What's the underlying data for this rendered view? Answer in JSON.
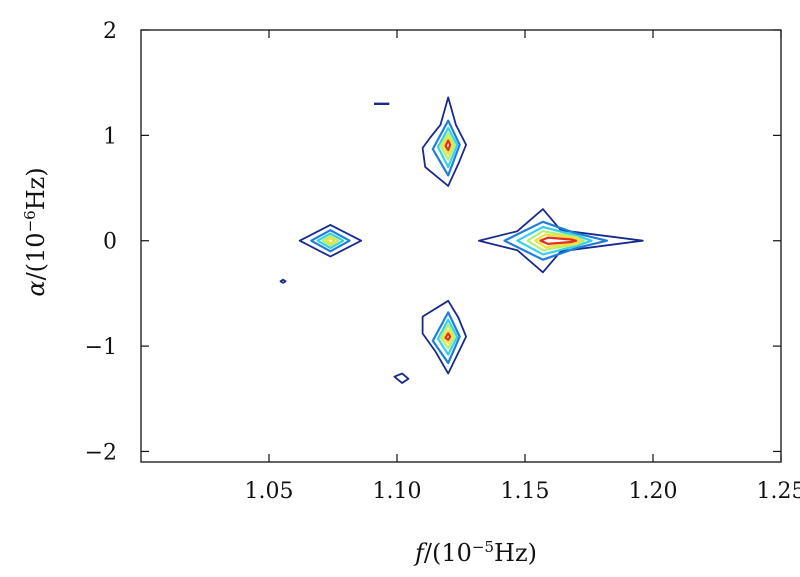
{
  "chart_data": {
    "type": "contour",
    "xlabel": {
      "var": "f",
      "unit_prefix": "/(10",
      "exp": "−5",
      "unit": "Hz)"
    },
    "ylabel": {
      "var": "α",
      "unit_prefix": "/(10",
      "exp": "−6",
      "unit": "Hz)"
    },
    "xlim": [
      1.0,
      1.25
    ],
    "ylim": [
      -2.1,
      2.0
    ],
    "xticks": [
      {
        "value": 1.05,
        "label": "1.05"
      },
      {
        "value": 1.1,
        "label": "1.10"
      },
      {
        "value": 1.15,
        "label": "1.15"
      },
      {
        "value": 1.2,
        "label": "1.20"
      },
      {
        "value": 1.25,
        "label": "1.25"
      }
    ],
    "yticks": [
      {
        "value": 2,
        "label": "2"
      },
      {
        "value": 1,
        "label": "1"
      },
      {
        "value": 0,
        "label": "0"
      },
      {
        "value": -1,
        "label": "−1"
      },
      {
        "value": -2,
        "label": "−2"
      }
    ],
    "level_colors": [
      "#1a2a8c",
      "#1e7fd8",
      "#38d0e8",
      "#b7f070",
      "#f0e040",
      "#e03020"
    ],
    "peaks": [
      {
        "f": 1.12,
        "alpha": 0.91,
        "contours": [
          {
            "level": 0,
            "points": [
              [
                1.12,
                1.36
              ],
              [
                1.123,
                1.1
              ],
              [
                1.127,
                0.91
              ],
              [
                1.124,
                0.73
              ],
              [
                1.12,
                0.52
              ],
              [
                1.115,
                0.62
              ],
              [
                1.111,
                0.7
              ],
              [
                1.11,
                0.88
              ],
              [
                1.113,
                0.98
              ],
              [
                1.117,
                1.1
              ]
            ]
          },
          {
            "level": 1,
            "points": [
              [
                1.12,
                1.14
              ],
              [
                1.1245,
                0.91
              ],
              [
                1.12,
                0.62
              ],
              [
                1.114,
                0.87
              ]
            ]
          },
          {
            "level": 2,
            "points": [
              [
                1.12,
                1.07
              ],
              [
                1.1235,
                0.91
              ],
              [
                1.12,
                0.7
              ],
              [
                1.116,
                0.89
              ]
            ]
          },
          {
            "level": 3,
            "points": [
              [
                1.12,
                1.02
              ],
              [
                1.1225,
                0.91
              ],
              [
                1.12,
                0.77
              ],
              [
                1.117,
                0.9
              ]
            ]
          },
          {
            "level": 4,
            "points": [
              [
                1.12,
                0.98
              ],
              [
                1.1215,
                0.91
              ],
              [
                1.12,
                0.82
              ],
              [
                1.118,
                0.9
              ]
            ]
          },
          {
            "level": 5,
            "points": [
              [
                1.12,
                0.95
              ],
              [
                1.1208,
                0.91
              ],
              [
                1.12,
                0.86
              ],
              [
                1.119,
                0.9
              ]
            ]
          }
        ]
      },
      {
        "f": 1.12,
        "alpha": -0.91,
        "contours": [
          {
            "level": 0,
            "points": [
              [
                1.12,
                -0.57
              ],
              [
                1.124,
                -0.73
              ],
              [
                1.127,
                -0.91
              ],
              [
                1.12,
                -1.26
              ],
              [
                1.115,
                -1.05
              ],
              [
                1.11,
                -0.88
              ],
              [
                1.11,
                -0.72
              ]
            ]
          },
          {
            "level": 1,
            "points": [
              [
                1.12,
                -0.68
              ],
              [
                1.1245,
                -0.91
              ],
              [
                1.12,
                -1.16
              ],
              [
                1.114,
                -0.95
              ]
            ]
          },
          {
            "level": 2,
            "points": [
              [
                1.12,
                -0.75
              ],
              [
                1.1235,
                -0.91
              ],
              [
                1.12,
                -1.08
              ],
              [
                1.116,
                -0.93
              ]
            ]
          },
          {
            "level": 3,
            "points": [
              [
                1.12,
                -0.8
              ],
              [
                1.1225,
                -0.91
              ],
              [
                1.12,
                -1.02
              ],
              [
                1.117,
                -0.92
              ]
            ]
          },
          {
            "level": 4,
            "points": [
              [
                1.12,
                -0.85
              ],
              [
                1.1215,
                -0.91
              ],
              [
                1.12,
                -0.97
              ],
              [
                1.118,
                -0.92
              ]
            ]
          },
          {
            "level": 5,
            "points": [
              [
                1.12,
                -0.88
              ],
              [
                1.1208,
                -0.91
              ],
              [
                1.12,
                -0.94
              ],
              [
                1.119,
                -0.92
              ]
            ]
          }
        ]
      },
      {
        "f": 1.074,
        "alpha": 0.0,
        "contours": [
          {
            "level": 0,
            "points": [
              [
                1.062,
                0.0
              ],
              [
                1.074,
                0.15
              ],
              [
                1.086,
                0.0
              ],
              [
                1.074,
                -0.15
              ]
            ]
          },
          {
            "level": 1,
            "points": [
              [
                1.0665,
                0.0
              ],
              [
                1.074,
                0.1
              ],
              [
                1.0815,
                0.0
              ],
              [
                1.074,
                -0.1
              ]
            ]
          },
          {
            "level": 2,
            "points": [
              [
                1.069,
                0.0
              ],
              [
                1.074,
                0.07
              ],
              [
                1.079,
                0.0
              ],
              [
                1.074,
                -0.07
              ]
            ]
          },
          {
            "level": 3,
            "points": [
              [
                1.071,
                0.0
              ],
              [
                1.074,
                0.045
              ],
              [
                1.077,
                0.0
              ],
              [
                1.074,
                -0.045
              ]
            ]
          },
          {
            "level": 4,
            "points": [
              [
                1.0725,
                0.0
              ],
              [
                1.074,
                0.025
              ],
              [
                1.0755,
                0.0
              ],
              [
                1.074,
                -0.025
              ]
            ]
          }
        ]
      },
      {
        "f": 1.16,
        "alpha": 0.0,
        "contours": [
          {
            "level": 0,
            "points": [
              [
                1.132,
                0.0
              ],
              [
                1.147,
                0.09
              ],
              [
                1.157,
                0.3
              ],
              [
                1.164,
                0.1
              ],
              [
                1.196,
                0.0
              ],
              [
                1.164,
                -0.1
              ],
              [
                1.157,
                -0.3
              ],
              [
                1.147,
                -0.09
              ]
            ]
          },
          {
            "level": 1,
            "points": [
              [
                1.142,
                0.0
              ],
              [
                1.157,
                0.18
              ],
              [
                1.17,
                0.07
              ],
              [
                1.182,
                0.0
              ],
              [
                1.17,
                -0.07
              ],
              [
                1.157,
                -0.18
              ]
            ]
          },
          {
            "level": 2,
            "points": [
              [
                1.147,
                0.0
              ],
              [
                1.157,
                0.13
              ],
              [
                1.17,
                0.05
              ],
              [
                1.176,
                0.0
              ],
              [
                1.17,
                -0.05
              ],
              [
                1.157,
                -0.13
              ]
            ]
          },
          {
            "level": 3,
            "points": [
              [
                1.151,
                0.0
              ],
              [
                1.157,
                0.09
              ],
              [
                1.17,
                0.035
              ],
              [
                1.173,
                0.0
              ],
              [
                1.17,
                -0.035
              ],
              [
                1.157,
                -0.09
              ]
            ]
          },
          {
            "level": 4,
            "points": [
              [
                1.154,
                0.0
              ],
              [
                1.158,
                0.06
              ],
              [
                1.17,
                0.025
              ],
              [
                1.1715,
                0.0
              ],
              [
                1.17,
                -0.025
              ],
              [
                1.158,
                -0.06
              ]
            ]
          },
          {
            "level": 5,
            "points": [
              [
                1.156,
                0.0
              ],
              [
                1.159,
                0.03
              ],
              [
                1.168,
                0.012
              ],
              [
                1.17,
                0.0
              ],
              [
                1.168,
                -0.012
              ],
              [
                1.159,
                -0.03
              ]
            ]
          }
        ]
      }
    ],
    "small_contours": [
      {
        "level": 0,
        "closed": true,
        "points": [
          [
            1.099,
            -1.29
          ],
          [
            1.102,
            -1.26
          ],
          [
            1.1045,
            -1.31
          ],
          [
            1.102,
            -1.35
          ]
        ]
      },
      {
        "level": 0,
        "closed": true,
        "points": [
          [
            1.0555,
            -0.37
          ],
          [
            1.0565,
            -0.385
          ],
          [
            1.0555,
            -0.4
          ],
          [
            1.0545,
            -0.385
          ]
        ]
      },
      {
        "level": 0,
        "closed": false,
        "points": [
          [
            1.091,
            1.3
          ],
          [
            1.097,
            1.3
          ]
        ]
      }
    ]
  }
}
